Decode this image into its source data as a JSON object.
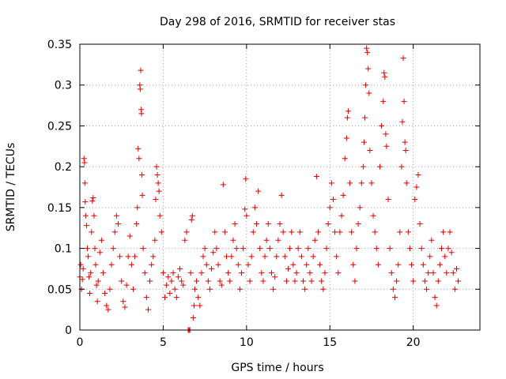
{
  "chart_data": {
    "type": "scatter",
    "title": "Day 298 of 2016, SRMTID for receiver stas",
    "xlabel": "GPS time / hours",
    "ylabel": "SRMTID / TECUs",
    "xlim": [
      0,
      24
    ],
    "ylim": [
      0,
      0.35
    ],
    "grid": true,
    "marker": "+",
    "color": "#e00000",
    "xticks": [
      0,
      5,
      10,
      15,
      20
    ],
    "xtick_labels": [
      "0",
      "5",
      "10",
      "15",
      "20"
    ],
    "yticks": [
      0,
      0.05,
      0.1,
      0.15,
      0.2,
      0.25,
      0.3,
      0.35
    ],
    "ytick_labels": [
      "0",
      "0.05",
      "0.1",
      "0.15",
      "0.2",
      "0.25",
      "0.3",
      "0.35"
    ],
    "series": [
      {
        "name": "SRMTID",
        "points": [
          [
            0.0,
            0.065
          ],
          [
            0.05,
            0.08
          ],
          [
            0.1,
            0.05
          ],
          [
            0.15,
            0.062
          ],
          [
            0.2,
            0.075
          ],
          [
            0.25,
            0.21
          ],
          [
            0.28,
            0.205
          ],
          [
            0.3,
            0.18
          ],
          [
            0.32,
            0.157
          ],
          [
            0.35,
            0.14
          ],
          [
            0.4,
            0.128
          ],
          [
            0.45,
            0.1
          ],
          [
            0.5,
            0.09
          ],
          [
            0.55,
            0.065
          ],
          [
            0.6,
            0.045
          ],
          [
            0.65,
            0.07
          ],
          [
            0.7,
            0.12
          ],
          [
            0.75,
            0.158
          ],
          [
            0.8,
            0.162
          ],
          [
            0.85,
            0.14
          ],
          [
            0.9,
            0.1
          ],
          [
            0.95,
            0.08
          ],
          [
            1.0,
            0.055
          ],
          [
            1.05,
            0.035
          ],
          [
            1.1,
            0.06
          ],
          [
            1.2,
            0.095
          ],
          [
            1.3,
            0.11
          ],
          [
            1.4,
            0.07
          ],
          [
            1.5,
            0.045
          ],
          [
            1.6,
            0.03
          ],
          [
            1.7,
            0.025
          ],
          [
            1.8,
            0.05
          ],
          [
            1.9,
            0.08
          ],
          [
            2.0,
            0.1
          ],
          [
            2.1,
            0.12
          ],
          [
            2.2,
            0.14
          ],
          [
            2.3,
            0.13
          ],
          [
            2.4,
            0.09
          ],
          [
            2.5,
            0.06
          ],
          [
            2.6,
            0.035
          ],
          [
            2.7,
            0.028
          ],
          [
            2.8,
            0.055
          ],
          [
            2.9,
            0.09
          ],
          [
            3.0,
            0.115
          ],
          [
            3.1,
            0.08
          ],
          [
            3.2,
            0.05
          ],
          [
            3.3,
            0.09
          ],
          [
            3.4,
            0.13
          ],
          [
            3.45,
            0.15
          ],
          [
            3.5,
            0.222
          ],
          [
            3.55,
            0.21
          ],
          [
            3.6,
            0.3
          ],
          [
            3.62,
            0.295
          ],
          [
            3.65,
            0.318
          ],
          [
            3.68,
            0.27
          ],
          [
            3.7,
            0.265
          ],
          [
            3.72,
            0.19
          ],
          [
            3.75,
            0.165
          ],
          [
            3.8,
            0.1
          ],
          [
            3.9,
            0.07
          ],
          [
            4.0,
            0.04
          ],
          [
            4.1,
            0.025
          ],
          [
            4.2,
            0.06
          ],
          [
            4.3,
            0.08
          ],
          [
            4.4,
            0.09
          ],
          [
            4.5,
            0.11
          ],
          [
            4.55,
            0.16
          ],
          [
            4.6,
            0.2
          ],
          [
            4.65,
            0.19
          ],
          [
            4.7,
            0.18
          ],
          [
            4.75,
            0.17
          ],
          [
            4.8,
            0.14
          ],
          [
            4.9,
            0.12
          ],
          [
            5.0,
            0.07
          ],
          [
            5.1,
            0.04
          ],
          [
            5.2,
            0.055
          ],
          [
            5.3,
            0.065
          ],
          [
            5.4,
            0.045
          ],
          [
            5.5,
            0.06
          ],
          [
            5.6,
            0.07
          ],
          [
            5.7,
            0.05
          ],
          [
            5.8,
            0.04
          ],
          [
            5.9,
            0.065
          ],
          [
            6.0,
            0.075
          ],
          [
            6.1,
            0.06
          ],
          [
            6.2,
            0.055
          ],
          [
            6.3,
            0.11
          ],
          [
            6.4,
            0.12
          ],
          [
            6.5,
            0.0
          ],
          [
            6.55,
            0.0
          ],
          [
            6.6,
            0.0
          ],
          [
            6.65,
            0.07
          ],
          [
            6.7,
            0.135
          ],
          [
            6.75,
            0.14
          ],
          [
            6.8,
            0.015
          ],
          [
            6.85,
            0.03
          ],
          [
            6.9,
            0.05
          ],
          [
            7.0,
            0.06
          ],
          [
            7.1,
            0.04
          ],
          [
            7.2,
            0.03
          ],
          [
            7.3,
            0.07
          ],
          [
            7.4,
            0.09
          ],
          [
            7.5,
            0.1
          ],
          [
            7.6,
            0.08
          ],
          [
            7.7,
            0.06
          ],
          [
            7.8,
            0.05
          ],
          [
            7.9,
            0.075
          ],
          [
            8.0,
            0.095
          ],
          [
            8.1,
            0.12
          ],
          [
            8.2,
            0.1
          ],
          [
            8.3,
            0.08
          ],
          [
            8.4,
            0.06
          ],
          [
            8.5,
            0.055
          ],
          [
            8.6,
            0.178
          ],
          [
            8.7,
            0.12
          ],
          [
            8.8,
            0.09
          ],
          [
            8.9,
            0.07
          ],
          [
            9.0,
            0.06
          ],
          [
            9.1,
            0.09
          ],
          [
            9.2,
            0.11
          ],
          [
            9.3,
            0.13
          ],
          [
            9.4,
            0.1
          ],
          [
            9.5,
            0.08
          ],
          [
            9.6,
            0.05
          ],
          [
            9.7,
            0.07
          ],
          [
            9.8,
            0.1
          ],
          [
            9.9,
            0.148
          ],
          [
            9.95,
            0.185
          ],
          [
            10.0,
            0.14
          ],
          [
            10.1,
            0.08
          ],
          [
            10.2,
            0.06
          ],
          [
            10.3,
            0.09
          ],
          [
            10.4,
            0.12
          ],
          [
            10.5,
            0.15
          ],
          [
            10.6,
            0.13
          ],
          [
            10.7,
            0.17
          ],
          [
            10.8,
            0.1
          ],
          [
            10.9,
            0.07
          ],
          [
            11.0,
            0.06
          ],
          [
            11.1,
            0.09
          ],
          [
            11.2,
            0.11
          ],
          [
            11.3,
            0.13
          ],
          [
            11.4,
            0.1
          ],
          [
            11.5,
            0.07
          ],
          [
            11.6,
            0.05
          ],
          [
            11.7,
            0.065
          ],
          [
            11.8,
            0.09
          ],
          [
            11.9,
            0.11
          ],
          [
            12.0,
            0.13
          ],
          [
            12.1,
            0.165
          ],
          [
            12.2,
            0.12
          ],
          [
            12.3,
            0.09
          ],
          [
            12.4,
            0.06
          ],
          [
            12.5,
            0.075
          ],
          [
            12.6,
            0.1
          ],
          [
            12.7,
            0.12
          ],
          [
            12.8,
            0.08
          ],
          [
            12.9,
            0.06
          ],
          [
            13.0,
            0.07
          ],
          [
            13.1,
            0.1
          ],
          [
            13.2,
            0.12
          ],
          [
            13.3,
            0.09
          ],
          [
            13.4,
            0.06
          ],
          [
            13.5,
            0.05
          ],
          [
            13.6,
            0.08
          ],
          [
            13.7,
            0.1
          ],
          [
            13.8,
            0.07
          ],
          [
            13.9,
            0.06
          ],
          [
            14.0,
            0.09
          ],
          [
            14.1,
            0.11
          ],
          [
            14.2,
            0.188
          ],
          [
            14.3,
            0.12
          ],
          [
            14.4,
            0.08
          ],
          [
            14.5,
            0.06
          ],
          [
            14.6,
            0.05
          ],
          [
            14.7,
            0.07
          ],
          [
            14.8,
            0.1
          ],
          [
            14.9,
            0.13
          ],
          [
            15.0,
            0.15
          ],
          [
            15.1,
            0.18
          ],
          [
            15.2,
            0.16
          ],
          [
            15.3,
            0.12
          ],
          [
            15.4,
            0.09
          ],
          [
            15.5,
            0.07
          ],
          [
            15.6,
            0.12
          ],
          [
            15.7,
            0.14
          ],
          [
            15.8,
            0.165
          ],
          [
            15.9,
            0.21
          ],
          [
            16.0,
            0.235
          ],
          [
            16.05,
            0.26
          ],
          [
            16.1,
            0.268
          ],
          [
            16.2,
            0.18
          ],
          [
            16.3,
            0.12
          ],
          [
            16.4,
            0.08
          ],
          [
            16.5,
            0.06
          ],
          [
            16.6,
            0.1
          ],
          [
            16.7,
            0.13
          ],
          [
            16.8,
            0.15
          ],
          [
            16.9,
            0.18
          ],
          [
            17.0,
            0.2
          ],
          [
            17.05,
            0.23
          ],
          [
            17.1,
            0.26
          ],
          [
            17.15,
            0.3
          ],
          [
            17.2,
            0.345
          ],
          [
            17.25,
            0.34
          ],
          [
            17.3,
            0.32
          ],
          [
            17.35,
            0.29
          ],
          [
            17.4,
            0.22
          ],
          [
            17.5,
            0.18
          ],
          [
            17.6,
            0.14
          ],
          [
            17.7,
            0.12
          ],
          [
            17.8,
            0.1
          ],
          [
            17.9,
            0.08
          ],
          [
            18.0,
            0.2
          ],
          [
            18.1,
            0.25
          ],
          [
            18.2,
            0.28
          ],
          [
            18.25,
            0.315
          ],
          [
            18.3,
            0.31
          ],
          [
            18.35,
            0.24
          ],
          [
            18.4,
            0.225
          ],
          [
            18.5,
            0.16
          ],
          [
            18.6,
            0.1
          ],
          [
            18.7,
            0.07
          ],
          [
            18.8,
            0.05
          ],
          [
            18.9,
            0.04
          ],
          [
            19.0,
            0.06
          ],
          [
            19.1,
            0.08
          ],
          [
            19.2,
            0.12
          ],
          [
            19.3,
            0.2
          ],
          [
            19.35,
            0.255
          ],
          [
            19.4,
            0.333
          ],
          [
            19.45,
            0.28
          ],
          [
            19.5,
            0.23
          ],
          [
            19.55,
            0.22
          ],
          [
            19.6,
            0.18
          ],
          [
            19.7,
            0.12
          ],
          [
            19.8,
            0.1
          ],
          [
            19.9,
            0.08
          ],
          [
            20.0,
            0.06
          ],
          [
            20.1,
            0.16
          ],
          [
            20.2,
            0.175
          ],
          [
            20.3,
            0.19
          ],
          [
            20.4,
            0.13
          ],
          [
            20.5,
            0.1
          ],
          [
            20.6,
            0.08
          ],
          [
            20.7,
            0.06
          ],
          [
            20.8,
            0.05
          ],
          [
            20.9,
            0.07
          ],
          [
            21.0,
            0.09
          ],
          [
            21.1,
            0.11
          ],
          [
            21.2,
            0.07
          ],
          [
            21.3,
            0.04
          ],
          [
            21.4,
            0.03
          ],
          [
            21.5,
            0.06
          ],
          [
            21.6,
            0.08
          ],
          [
            21.7,
            0.1
          ],
          [
            21.8,
            0.12
          ],
          [
            21.9,
            0.09
          ],
          [
            22.0,
            0.07
          ],
          [
            22.1,
            0.1
          ],
          [
            22.2,
            0.12
          ],
          [
            22.3,
            0.095
          ],
          [
            22.4,
            0.07
          ],
          [
            22.5,
            0.05
          ],
          [
            22.6,
            0.075
          ],
          [
            22.7,
            0.06
          ]
        ]
      }
    ]
  }
}
